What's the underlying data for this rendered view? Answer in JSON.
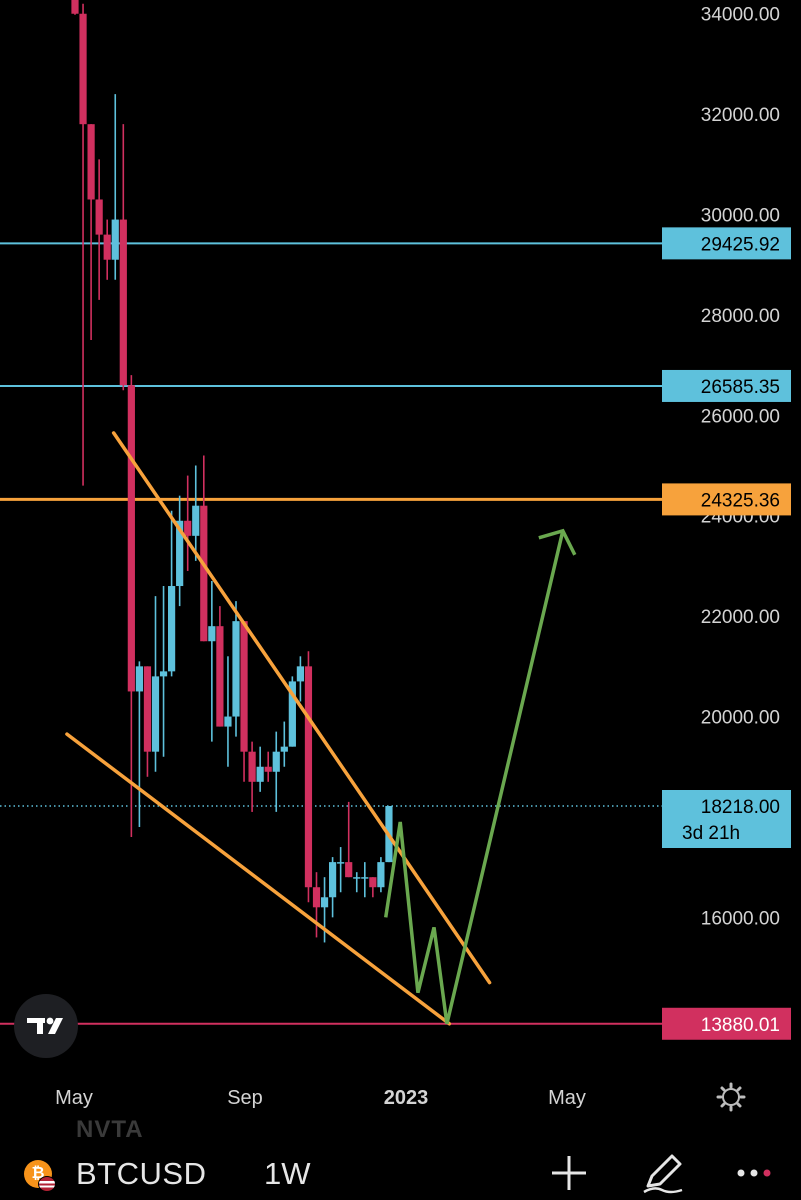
{
  "app": {
    "symbol": "BTCUSD",
    "interval": "1W",
    "ghost_label": "NVTA"
  },
  "colors": {
    "background": "#000000",
    "up": "#5ec1dc",
    "down": "#d1305f",
    "trendline": "#f7a23c",
    "projection": "#6aa84f",
    "resistance_1": "#5ec1dc",
    "resistance_2": "#f7a23c",
    "support": "#d1305f"
  },
  "icons": {
    "logo": "tradingview-logo-icon",
    "settings": "gear-icon",
    "add": "plus-icon",
    "draw": "pen-icon",
    "more": "more-dots-icon",
    "coin": "bitcoin-icon",
    "flag": "us-flag-icon"
  },
  "chart_data": {
    "type": "candlestick",
    "symbol": "BTCUSD",
    "interval": "1W",
    "ylim": [
      13200,
      34300
    ],
    "y_ticks": [
      "34000.00",
      "32000.00",
      "30000.00",
      "28000.00",
      "26000.00",
      "24000.00",
      "22000.00",
      "20000.00",
      "16000.00"
    ],
    "x_ticks": [
      {
        "label": "May",
        "x": "2022-05",
        "bold": false
      },
      {
        "label": "Sep",
        "x": "2022-09",
        "bold": false
      },
      {
        "label": "2023",
        "x": "2023-01",
        "bold": true
      },
      {
        "label": "May",
        "x": "2023-05",
        "bold": false
      }
    ],
    "candles": [
      {
        "o": 34500,
        "h": 34500,
        "l": 33980,
        "c": 34000
      },
      {
        "o": 34000,
        "h": 34200,
        "l": 24600,
        "c": 31800
      },
      {
        "o": 31800,
        "h": 31800,
        "l": 27500,
        "c": 30300
      },
      {
        "o": 30300,
        "h": 31100,
        "l": 28300,
        "c": 29600
      },
      {
        "o": 29600,
        "h": 29900,
        "l": 28700,
        "c": 29100
      },
      {
        "o": 29100,
        "h": 32400,
        "l": 28700,
        "c": 29900
      },
      {
        "o": 29900,
        "h": 31800,
        "l": 26500,
        "c": 26600
      },
      {
        "o": 26600,
        "h": 26800,
        "l": 17600,
        "c": 20500
      },
      {
        "o": 20500,
        "h": 21100,
        "l": 17800,
        "c": 21000
      },
      {
        "o": 21000,
        "h": 21000,
        "l": 18800,
        "c": 19300
      },
      {
        "o": 19300,
        "h": 22400,
        "l": 18900,
        "c": 20800
      },
      {
        "o": 20800,
        "h": 22600,
        "l": 19200,
        "c": 20900
      },
      {
        "o": 20900,
        "h": 24100,
        "l": 20800,
        "c": 22600
      },
      {
        "o": 22600,
        "h": 24400,
        "l": 22200,
        "c": 23900
      },
      {
        "o": 23900,
        "h": 24800,
        "l": 22900,
        "c": 23600
      },
      {
        "o": 23600,
        "h": 25000,
        "l": 23100,
        "c": 24200
      },
      {
        "o": 24200,
        "h": 25200,
        "l": 21500,
        "c": 21500
      },
      {
        "o": 21500,
        "h": 22700,
        "l": 19500,
        "c": 21800
      },
      {
        "o": 21800,
        "h": 22200,
        "l": 19800,
        "c": 19800
      },
      {
        "o": 19800,
        "h": 21200,
        "l": 19000,
        "c": 20000
      },
      {
        "o": 20000,
        "h": 22300,
        "l": 19600,
        "c": 21900
      },
      {
        "o": 21900,
        "h": 21900,
        "l": 18700,
        "c": 19300
      },
      {
        "o": 19300,
        "h": 19500,
        "l": 18100,
        "c": 18700
      },
      {
        "o": 18700,
        "h": 19400,
        "l": 18500,
        "c": 19000
      },
      {
        "o": 19000,
        "h": 19300,
        "l": 18700,
        "c": 18900
      },
      {
        "o": 18900,
        "h": 19700,
        "l": 18100,
        "c": 19300
      },
      {
        "o": 19300,
        "h": 19900,
        "l": 19000,
        "c": 19400
      },
      {
        "o": 19400,
        "h": 20800,
        "l": 19400,
        "c": 20700
      },
      {
        "o": 20700,
        "h": 21200,
        "l": 20300,
        "c": 21000
      },
      {
        "o": 21000,
        "h": 21300,
        "l": 16300,
        "c": 16600
      },
      {
        "o": 16600,
        "h": 16900,
        "l": 15600,
        "c": 16200
      },
      {
        "o": 16200,
        "h": 16800,
        "l": 15500,
        "c": 16400
      },
      {
        "o": 16400,
        "h": 17200,
        "l": 16000,
        "c": 17100
      },
      {
        "o": 17100,
        "h": 17400,
        "l": 16500,
        "c": 17100
      },
      {
        "o": 17100,
        "h": 18300,
        "l": 16800,
        "c": 16800
      },
      {
        "o": 16800,
        "h": 16900,
        "l": 16500,
        "c": 16800
      },
      {
        "o": 16800,
        "h": 17100,
        "l": 16400,
        "c": 16800
      },
      {
        "o": 16800,
        "h": 16800,
        "l": 16400,
        "c": 16600
      },
      {
        "o": 16600,
        "h": 17200,
        "l": 16500,
        "c": 17100
      },
      {
        "o": 17100,
        "h": 18200,
        "l": 17100,
        "c": 18218
      }
    ],
    "horizontal_lines": [
      {
        "price": 29425.92,
        "label": "29425.92",
        "color": "#5ec1dc",
        "width": 2
      },
      {
        "price": 26585.35,
        "label": "26585.35",
        "color": "#5ec1dc",
        "width": 2
      },
      {
        "price": 24325.36,
        "label": "24325.36",
        "color": "#f7a23c",
        "width": 3
      },
      {
        "price": 13880.01,
        "label": "13880.01",
        "color": "#d1305f",
        "width": 2
      }
    ],
    "last_price": {
      "price": 18218.0,
      "label": "18218.00",
      "countdown": "3d 21h",
      "color": "#5ec1dc"
    },
    "channel": {
      "upper": {
        "from_bar": 4.8,
        "from_price": 25650,
        "to_bar": 51.5,
        "to_price": 14700
      },
      "lower": {
        "from_bar": -1.0,
        "from_price": 19650,
        "to_bar": 46.5,
        "to_price": 13880
      }
    },
    "projection": [
      {
        "bar": 38.6,
        "price": 16000
      },
      {
        "bar": 40.4,
        "price": 17900
      },
      {
        "bar": 42.6,
        "price": 14500
      },
      {
        "bar": 44.6,
        "price": 15800
      },
      {
        "bar": 46.2,
        "price": 13880
      },
      {
        "bar": 60.6,
        "price": 23700
      }
    ]
  }
}
